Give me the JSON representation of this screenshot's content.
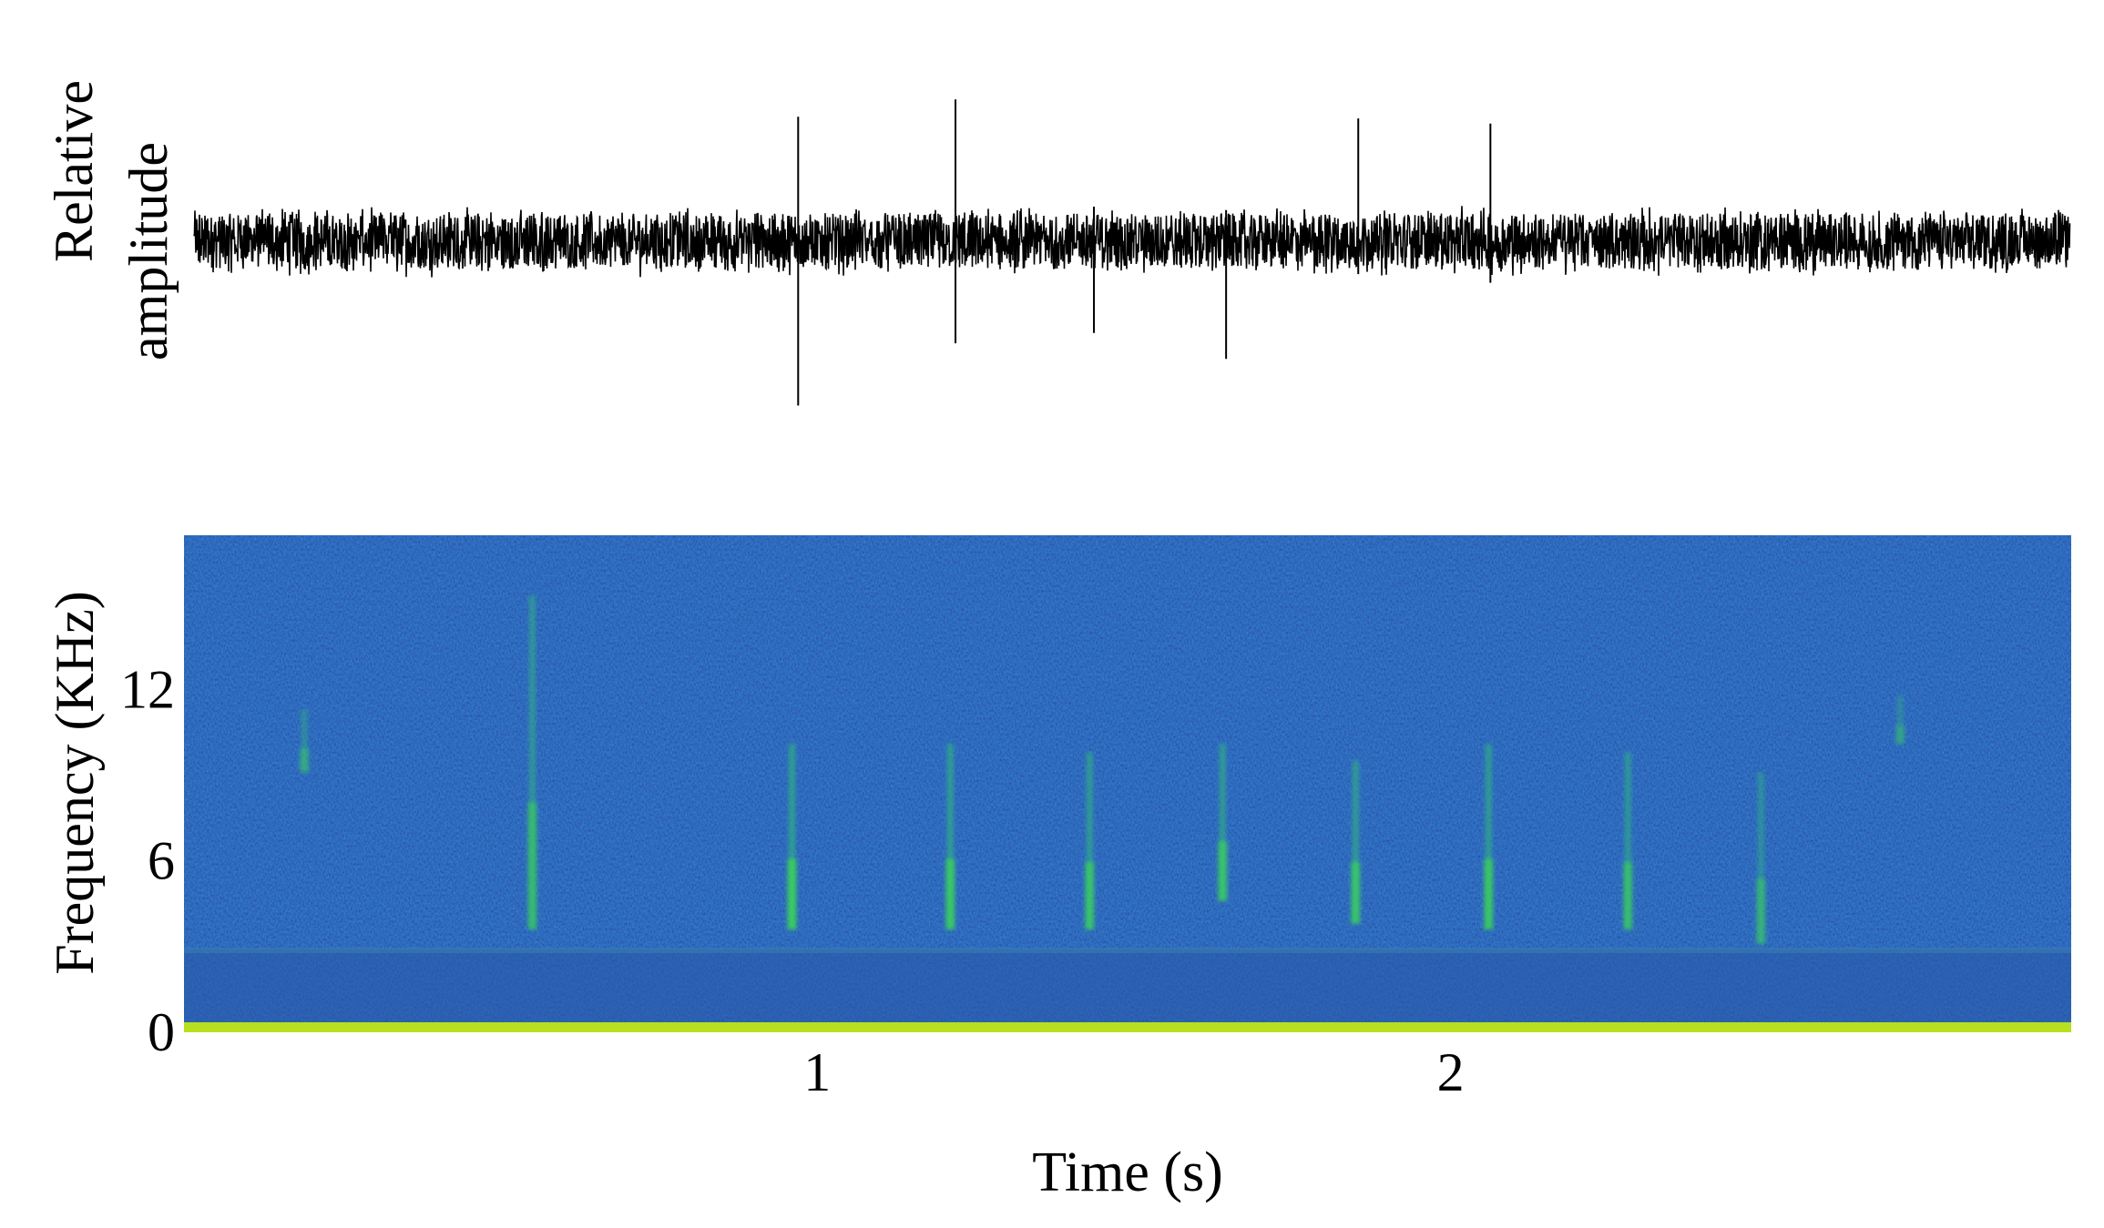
{
  "chart_data": [
    {
      "type": "line",
      "title": "",
      "ylabel_lines": [
        "Relative",
        "amplitude"
      ],
      "xlim": [
        0,
        2.98
      ],
      "ylim": [
        -1,
        1
      ],
      "axes_visible": false,
      "series": [
        {
          "values_summary": "dense waveform, typical amplitude about +/-0.2 with isolated sharp spikes",
          "spikes": [
            {
              "t": 0.96,
              "min": -0.95,
              "max": 0.72
            },
            {
              "t": 1.21,
              "min": -0.59,
              "max": 0.82
            },
            {
              "t": 1.43,
              "min": -0.53,
              "max": 0.2
            },
            {
              "t": 1.64,
              "min": -0.68,
              "max": 0.18
            },
            {
              "t": 1.85,
              "min": -0.19,
              "max": 0.71
            },
            {
              "t": 2.06,
              "min": -0.24,
              "max": 0.68
            }
          ]
        }
      ],
      "colors": {
        "line": "#000000"
      }
    },
    {
      "type": "heatmap",
      "title": "",
      "xlabel": "Time (s)",
      "ylabel": "Frequency (KHz)",
      "xlim": [
        0,
        2.98
      ],
      "ylim": [
        0,
        17.4
      ],
      "xticks": [
        1,
        2
      ],
      "yticks": [
        0,
        6,
        12
      ],
      "colors": {
        "background": "#1a2a9a",
        "low_band": "#24499e",
        "baseline": "#b8e020",
        "call": "#3cd25a"
      },
      "noise_band_khz": [
        0,
        2.9
      ],
      "calls": [
        {
          "t": 0.19,
          "f_low": 9.1,
          "f_high": 11.3,
          "intensity": 0.35
        },
        {
          "t": 0.55,
          "f_low": 3.6,
          "f_high": 15.3,
          "intensity": 0.6
        },
        {
          "t": 0.96,
          "f_low": 3.6,
          "f_high": 10.1,
          "intensity": 0.9
        },
        {
          "t": 1.21,
          "f_low": 3.6,
          "f_high": 10.1,
          "intensity": 0.85
        },
        {
          "t": 1.43,
          "f_low": 3.6,
          "f_high": 9.8,
          "intensity": 0.75
        },
        {
          "t": 1.64,
          "f_low": 4.6,
          "f_high": 10.1,
          "intensity": 0.75
        },
        {
          "t": 1.85,
          "f_low": 3.8,
          "f_high": 9.5,
          "intensity": 0.75
        },
        {
          "t": 2.06,
          "f_low": 3.6,
          "f_high": 10.1,
          "intensity": 0.8
        },
        {
          "t": 2.28,
          "f_low": 3.6,
          "f_high": 9.8,
          "intensity": 0.65
        },
        {
          "t": 2.49,
          "f_low": 3.1,
          "f_high": 9.1,
          "intensity": 0.45
        },
        {
          "t": 2.71,
          "f_low": 10.1,
          "f_high": 11.8,
          "intensity": 0.25
        }
      ]
    }
  ]
}
